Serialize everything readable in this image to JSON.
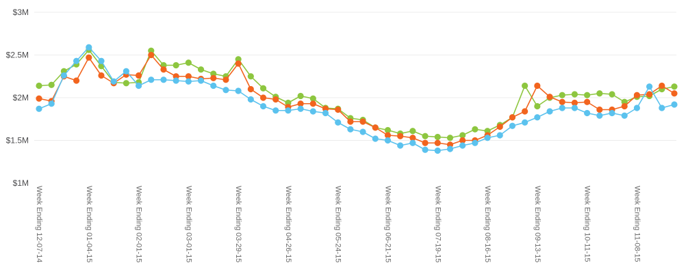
{
  "chart_data": {
    "type": "line",
    "title": "",
    "xlabel": "",
    "ylabel": "",
    "unit": "$M",
    "ylim": [
      1,
      3
    ],
    "grid": "horizontal",
    "legend": "none",
    "n_points": 52,
    "x_tick_every": 4,
    "x_tick_labels": [
      "Week Ending 12-07-14",
      "Week Ending 01-04-15",
      "Week Ending 02-01-15",
      "Week Ending 03-01-15",
      "Week Ending 03-29-15",
      "Week Ending 04-26-15",
      "Week Ending 05-24-15",
      "Week Ending 06-21-15",
      "Week Ending 07-19-15",
      "Week Ending 08-16-15",
      "Week Ending 09-13-15",
      "Week Ending 10-11-15",
      "Week Ending 11-08-15"
    ],
    "y_axis": {
      "tick_labels": [
        "$3M",
        "$2.5M",
        "$2M",
        "$1.5M",
        "$1M"
      ],
      "tick_values": [
        3,
        2.5,
        2,
        1.5,
        1
      ],
      "gridline_values": [
        3,
        2.5,
        2,
        1.5
      ]
    },
    "colors": {
      "green": "#8dc63f",
      "orange": "#f2641e",
      "blue": "#5bc2ee",
      "gridline": "#ececec",
      "y_label_text": "#4b4b4d",
      "x_label_text": "#6b6b6b"
    },
    "series": [
      {
        "name": "green",
        "color": "#8dc63f",
        "values": [
          2.14,
          2.15,
          2.31,
          2.39,
          2.56,
          2.37,
          2.18,
          2.17,
          2.18,
          2.55,
          2.38,
          2.38,
          2.41,
          2.33,
          2.28,
          2.25,
          2.45,
          2.25,
          2.11,
          2.01,
          1.94,
          2.02,
          1.99,
          1.88,
          1.87,
          1.76,
          1.74,
          1.65,
          1.62,
          1.58,
          1.61,
          1.55,
          1.54,
          1.53,
          1.56,
          1.63,
          1.61,
          1.68,
          1.77,
          2.14,
          1.9,
          2.0,
          2.03,
          2.04,
          2.03,
          2.05,
          2.04,
          1.95,
          2.01,
          2.02,
          2.1,
          2.13
        ]
      },
      {
        "name": "orange",
        "color": "#f2641e",
        "values": [
          1.99,
          1.96,
          2.25,
          2.2,
          2.47,
          2.26,
          2.17,
          2.27,
          2.26,
          2.5,
          2.33,
          2.25,
          2.25,
          2.22,
          2.23,
          2.21,
          2.4,
          2.1,
          2.0,
          1.98,
          1.89,
          1.93,
          1.93,
          1.87,
          1.86,
          1.72,
          1.72,
          1.65,
          1.56,
          1.55,
          1.53,
          1.47,
          1.47,
          1.45,
          1.5,
          1.5,
          1.56,
          1.66,
          1.77,
          1.84,
          2.14,
          2.01,
          1.95,
          1.94,
          1.95,
          1.86,
          1.86,
          1.9,
          2.03,
          2.04,
          2.14,
          2.05
        ]
      },
      {
        "name": "blue",
        "color": "#5bc2ee",
        "values": [
          1.87,
          1.93,
          2.26,
          2.43,
          2.59,
          2.43,
          2.19,
          2.31,
          2.14,
          2.21,
          2.21,
          2.2,
          2.19,
          2.2,
          2.14,
          2.09,
          2.08,
          1.98,
          1.9,
          1.85,
          1.85,
          1.87,
          1.84,
          1.82,
          1.71,
          1.63,
          1.6,
          1.52,
          1.5,
          1.44,
          1.47,
          1.39,
          1.38,
          1.4,
          1.44,
          1.47,
          1.53,
          1.56,
          1.67,
          1.71,
          1.77,
          1.84,
          1.88,
          1.88,
          1.82,
          1.79,
          1.82,
          1.79,
          1.88,
          2.13,
          1.88,
          1.92
        ]
      }
    ]
  }
}
